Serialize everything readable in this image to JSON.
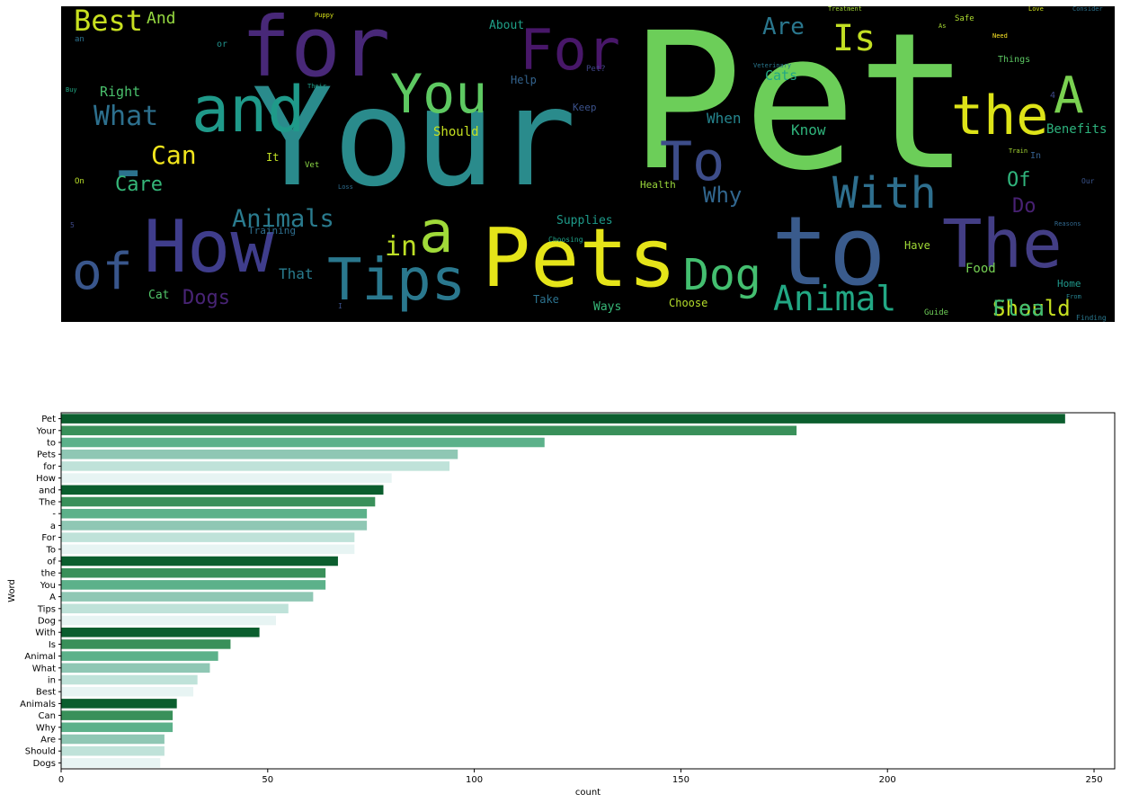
{
  "wordcloud": {
    "words": [
      {
        "text": "Pet",
        "color": "#6cce59"
      },
      {
        "text": "Your",
        "color": "#2a8b8c"
      },
      {
        "text": "to",
        "color": "#3a5b8c"
      },
      {
        "text": "Pets",
        "color": "#e5e419"
      },
      {
        "text": "for",
        "color": "#482878"
      },
      {
        "text": "How",
        "color": "#3f3d8c"
      },
      {
        "text": "and",
        "color": "#1f9a8a"
      },
      {
        "text": "The",
        "color": "#433e85"
      },
      {
        "text": "-",
        "color": "#2c728e"
      },
      {
        "text": "a",
        "color": "#a0da39"
      },
      {
        "text": "For",
        "color": "#481769"
      },
      {
        "text": "To",
        "color": "#3d4d8a"
      },
      {
        "text": "of",
        "color": "#39568c"
      },
      {
        "text": "the",
        "color": "#dde318"
      },
      {
        "text": "You",
        "color": "#5ec962"
      },
      {
        "text": "A",
        "color": "#7ad151"
      },
      {
        "text": "Tips",
        "color": "#2a788e"
      },
      {
        "text": "Dog",
        "color": "#44bf70"
      },
      {
        "text": "With",
        "color": "#2e6f8e"
      },
      {
        "text": "Is",
        "color": "#c2df23"
      },
      {
        "text": "Animal",
        "color": "#22a884"
      },
      {
        "text": "What",
        "color": "#2d708e"
      },
      {
        "text": "in",
        "color": "#bddf26"
      },
      {
        "text": "Best",
        "color": "#c8e020"
      },
      {
        "text": "Animals",
        "color": "#2a7b8e"
      },
      {
        "text": "Can",
        "color": "#f1e51d"
      },
      {
        "text": "Why",
        "color": "#31668e"
      },
      {
        "text": "Are",
        "color": "#2a778e"
      },
      {
        "text": "Should",
        "color": "#c5e021"
      },
      {
        "text": "Dogs",
        "color": "#482475"
      },
      {
        "text": "Care",
        "color": "#35b779"
      },
      {
        "text": "Right",
        "color": "#4ac16d"
      },
      {
        "text": "Cats",
        "color": "#22a785"
      },
      {
        "text": "Of",
        "color": "#30b47c"
      },
      {
        "text": "Do",
        "color": "#482173"
      },
      {
        "text": "Know",
        "color": "#2fb47c"
      },
      {
        "text": "When",
        "color": "#25858e"
      },
      {
        "text": "Benefits",
        "color": "#2db27d"
      },
      {
        "text": "That",
        "color": "#297b8e"
      },
      {
        "text": "Food",
        "color": "#75d054"
      },
      {
        "text": "Cat",
        "color": "#52c569"
      },
      {
        "text": "And",
        "color": "#95d840"
      },
      {
        "text": "Ways",
        "color": "#37b878"
      },
      {
        "text": "Choose",
        "color": "#b5de2b"
      },
      {
        "text": "Supplies",
        "color": "#1e9b8a"
      },
      {
        "text": "About",
        "color": "#1fa088"
      },
      {
        "text": "Help",
        "color": "#33638d"
      },
      {
        "text": "Training",
        "color": "#2e6e8e"
      },
      {
        "text": "Have",
        "color": "#a2da37"
      },
      {
        "text": "Home",
        "color": "#1f988b"
      },
      {
        "text": "Flea",
        "color": "#3fbc73"
      },
      {
        "text": "Should",
        "color": "#c5e021"
      },
      {
        "text": "It",
        "color": "#c0df25"
      },
      {
        "text": "In",
        "color": "#355f8d"
      },
      {
        "text": "Things",
        "color": "#5cc863"
      },
      {
        "text": "Keep",
        "color": "#3b528b"
      },
      {
        "text": "Vet",
        "color": "#8bd646"
      },
      {
        "text": "Health",
        "color": "#9bd93c"
      },
      {
        "text": "or",
        "color": "#21918c"
      },
      {
        "text": "an",
        "color": "#2d718e"
      },
      {
        "text": "Choosing",
        "color": "#1fa187"
      },
      {
        "text": "Take",
        "color": "#2c728e"
      },
      {
        "text": "5",
        "color": "#3e4a89"
      },
      {
        "text": "Finding",
        "color": "#2a788e"
      },
      {
        "text": "Guide",
        "color": "#6ece58"
      },
      {
        "text": "From",
        "color": "#26828e"
      },
      {
        "text": "Need",
        "color": "#fde725"
      },
      {
        "text": "Puppy",
        "color": "#d8e219"
      },
      {
        "text": "Treatment",
        "color": "#a5db36"
      },
      {
        "text": "Consider",
        "color": "#2c728e"
      },
      {
        "text": "Safe",
        "color": "#addc30"
      },
      {
        "text": "As",
        "color": "#a8db34"
      },
      {
        "text": "Veterinary",
        "color": "#2a788e"
      },
      {
        "text": "Their",
        "color": "#1e9c89"
      },
      {
        "text": "Train",
        "color": "#a8db34"
      },
      {
        "text": "Love",
        "color": "#d0e11c"
      },
      {
        "text": "Our",
        "color": "#3a548c"
      },
      {
        "text": "Reasons",
        "color": "#31688e"
      },
      {
        "text": "Pet?",
        "color": "#404688"
      },
      {
        "text": "On",
        "color": "#b8de29"
      },
      {
        "text": "Buy",
        "color": "#22a884"
      },
      {
        "text": "Loss",
        "color": "#2e6d8e"
      },
      {
        "text": "I",
        "color": "#3b518b"
      },
      {
        "text": "4",
        "color": "#3e4989"
      }
    ]
  },
  "chart_data": {
    "type": "bar",
    "orientation": "horizontal",
    "categories": [
      "Pet",
      "Your",
      "to",
      "Pets",
      "for",
      "How",
      "and",
      "The",
      "-",
      "a",
      "For",
      "To",
      "of",
      "the",
      "You",
      "A",
      "Tips",
      "Dog",
      "With",
      "Is",
      "Animal",
      "What",
      "in",
      "Best",
      "Animals",
      "Can",
      "Why",
      "Are",
      "Should",
      "Dogs"
    ],
    "values": [
      243,
      178,
      117,
      96,
      94,
      80,
      78,
      76,
      74,
      74,
      71,
      71,
      67,
      64,
      64,
      61,
      55,
      52,
      48,
      41,
      38,
      36,
      33,
      32,
      28,
      27,
      27,
      25,
      25,
      24
    ],
    "palette": [
      "#0b5e2e",
      "#39905a",
      "#5cb18a",
      "#8fc7b4",
      "#bfe2d9",
      "#e7f4f3"
    ],
    "xlabel": "count",
    "ylabel": "Word",
    "xlim": [
      0,
      255
    ],
    "xticks": [
      0,
      50,
      100,
      150,
      200,
      250
    ],
    "grid": false
  }
}
